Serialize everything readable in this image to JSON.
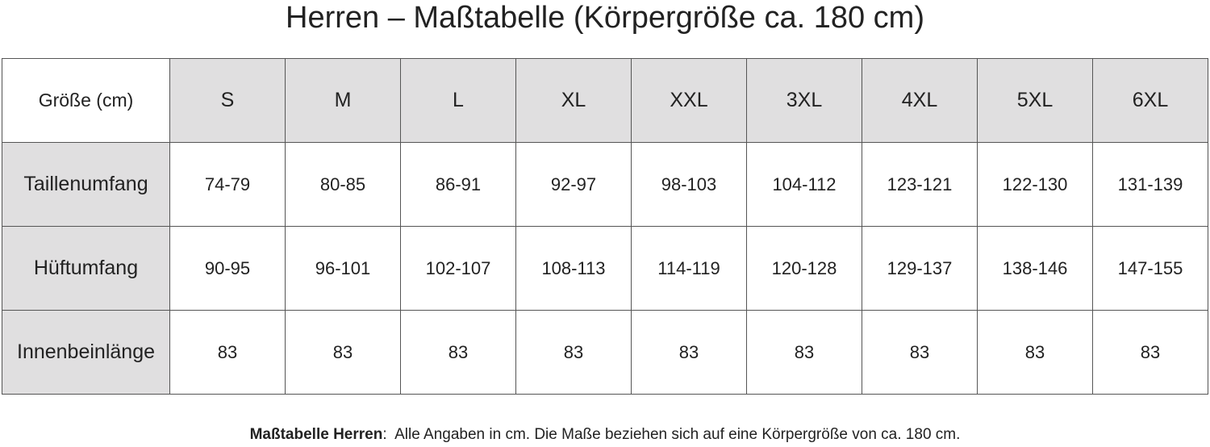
{
  "title": "Herren – Maßtabelle (Körpergröße ca. 180 cm)",
  "table": {
    "header": [
      "Größe (cm)",
      "S",
      "M",
      "L",
      "XL",
      "XXL",
      "3XL",
      "4XL",
      "5XL",
      "6XL"
    ],
    "rows": [
      [
        "Taillenumfang",
        "74-79",
        "80-85",
        "86-91",
        "92-97",
        "98-103",
        "104-112",
        "123-121",
        "122-130",
        "131-139"
      ],
      [
        "Hüftumfang",
        "90-95",
        "96-101",
        "102-107",
        "108-113",
        "114-119",
        "120-128",
        "129-137",
        "138-146",
        "147-155"
      ],
      [
        "Innenbeinlänge",
        "83",
        "83",
        "83",
        "83",
        "83",
        "83",
        "83",
        "83",
        "83"
      ]
    ]
  },
  "footnote": {
    "label": "Maßtabelle Herren",
    "text": ":  Alle Angaben in cm. Die Maße beziehen sich auf eine Körpergröße von ca. 180 cm."
  }
}
